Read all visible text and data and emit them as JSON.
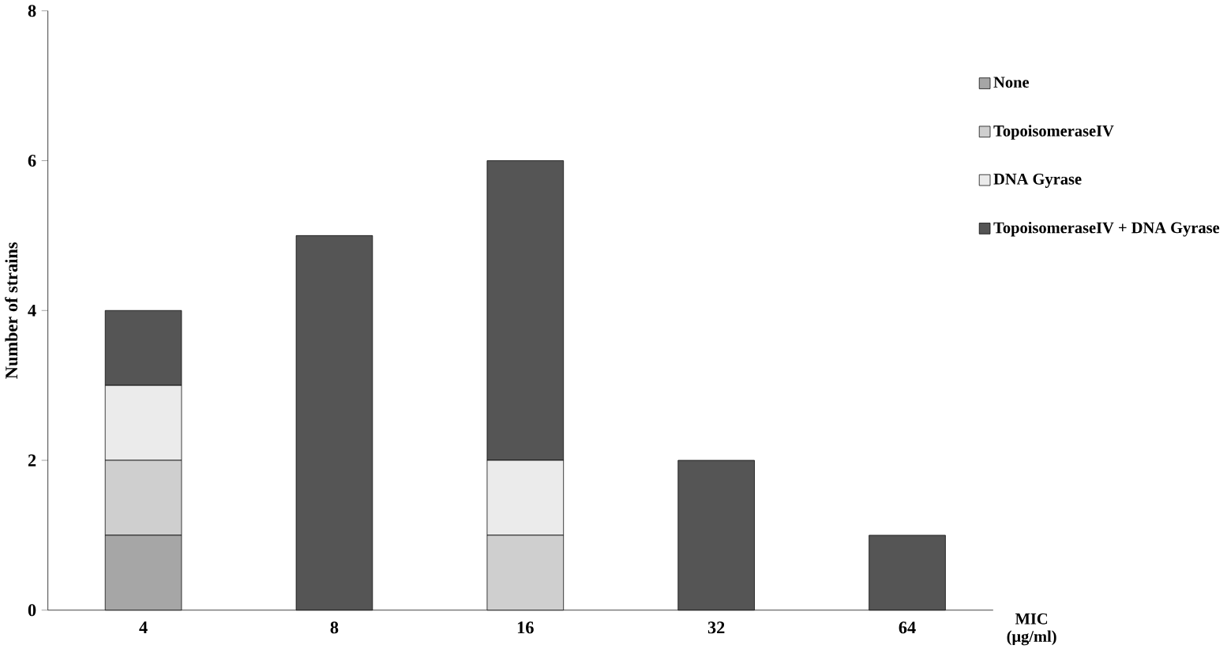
{
  "chart_data": {
    "type": "bar",
    "stacked": true,
    "xlabel": "MIC (μg/ml)",
    "ylabel": "Number of strains",
    "categories": [
      "4",
      "8",
      "16",
      "32",
      "64"
    ],
    "series": [
      {
        "name": "None",
        "color": "#a6a6a6",
        "values": [
          1,
          0,
          0,
          0,
          0
        ]
      },
      {
        "name": "TopoisomeraseIV",
        "color": "#cfcfcf",
        "values": [
          1,
          0,
          1,
          0,
          0
        ]
      },
      {
        "name": "DNA Gyrase",
        "color": "#ebebeb",
        "values": [
          1,
          0,
          1,
          0,
          0
        ]
      },
      {
        "name": "TopoisomeraseIV + DNA Gyrase",
        "color": "#555555",
        "values": [
          1,
          5,
          4,
          2,
          1
        ]
      }
    ],
    "ylim": [
      0,
      8
    ],
    "yticks": [
      0,
      2,
      4,
      6,
      8
    ],
    "grid": false,
    "legend": "top right"
  }
}
